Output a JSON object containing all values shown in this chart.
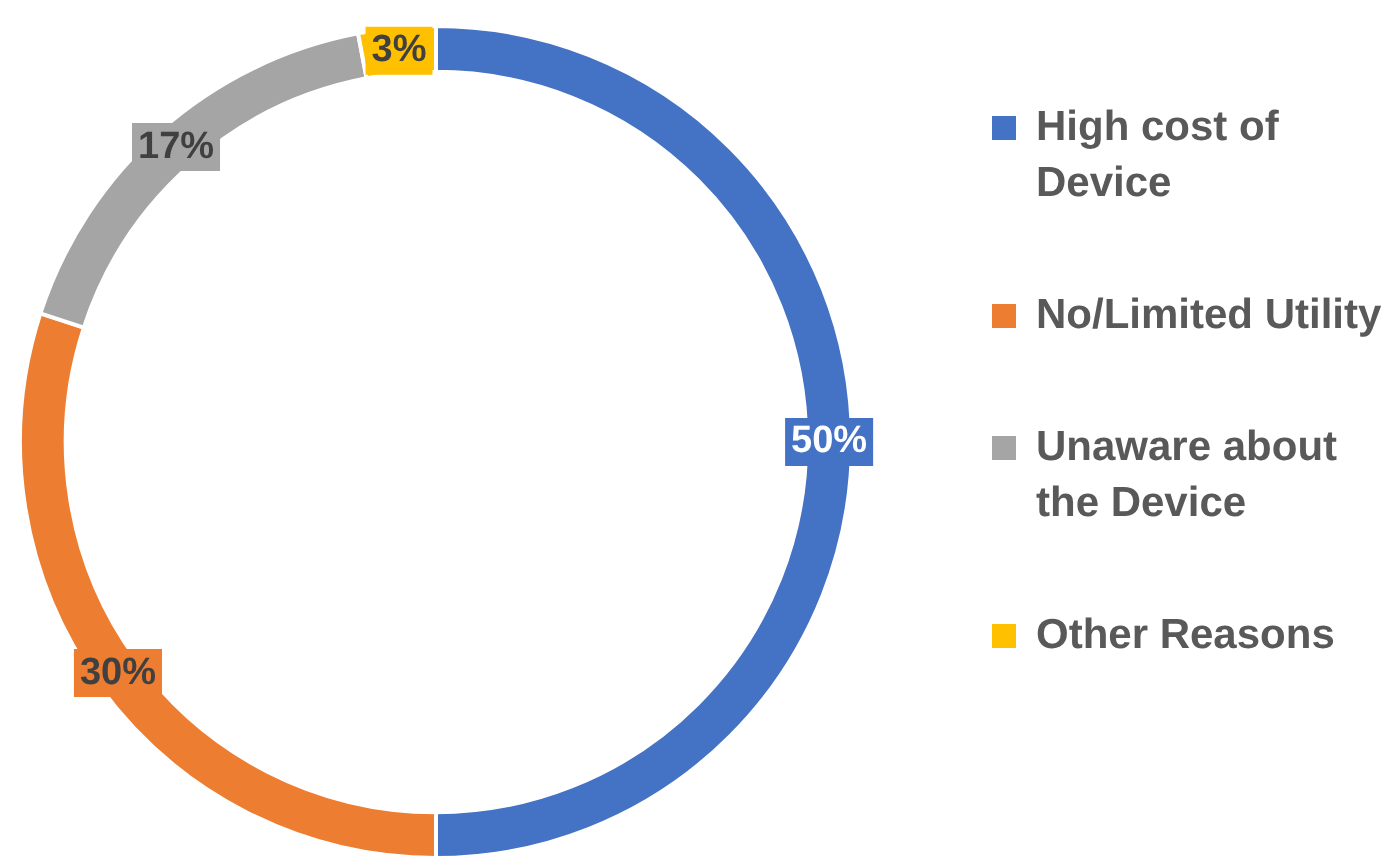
{
  "chart_data": {
    "type": "donut",
    "categories": [
      "High cost of Device",
      "No/Limited Utility",
      "Unaware about the Device",
      "Other Reasons"
    ],
    "values": [
      50,
      30,
      17,
      3
    ],
    "colors": [
      "#4472c4",
      "#ed7d31",
      "#a5a5a5",
      "#ffc000"
    ],
    "value_labels": [
      "50%",
      "30%",
      "17%",
      "3%"
    ],
    "legend": "right"
  }
}
